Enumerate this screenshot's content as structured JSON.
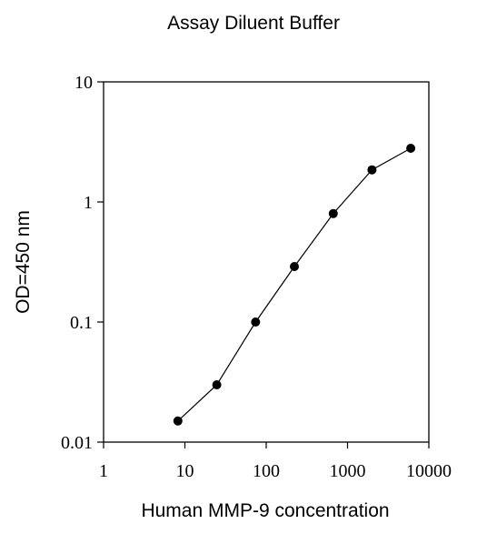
{
  "chart_data": {
    "type": "scatter",
    "title": "Assay Diluent Buffer",
    "xlabel": "Human MMP-9 concentration",
    "ylabel": "OD=450 nm",
    "xscale": "log",
    "yscale": "log",
    "xlim": [
      1,
      10000
    ],
    "ylim": [
      0.01,
      10
    ],
    "grid": false,
    "x_ticks": [
      "1",
      "10",
      "100",
      "1000",
      "10000"
    ],
    "y_ticks": [
      "0.01",
      "0.1",
      "1",
      "10"
    ],
    "series": [
      {
        "x": [
          8.2,
          24.7,
          74,
          222,
          667,
          2000,
          6000
        ],
        "y": [
          0.015,
          0.03,
          0.1,
          0.29,
          0.8,
          1.85,
          2.8
        ],
        "style": "line-with-markers",
        "color": "#000000"
      }
    ]
  }
}
